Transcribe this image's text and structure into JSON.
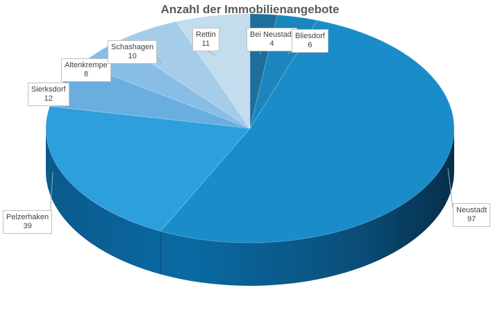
{
  "chart_data": {
    "type": "pie",
    "title": "Anzahl der Immobilienangebote",
    "slices": [
      {
        "label": "Bei Neustadt",
        "value": 4,
        "color": "#1f6d9a"
      },
      {
        "label": "Bliesdorf",
        "value": 6,
        "color": "#1a86bd"
      },
      {
        "label": "Neustadt",
        "value": 97,
        "color": "#1a8cc9"
      },
      {
        "label": "Pelzerhaken",
        "value": 39,
        "color": "#2d9fdc"
      },
      {
        "label": "Sierksdorf",
        "value": 12,
        "color": "#6aaee0"
      },
      {
        "label": "Altenkrempe",
        "value": 8,
        "color": "#88bde6"
      },
      {
        "label": "Schashagen",
        "value": 10,
        "color": "#a5cdea"
      },
      {
        "label": "Rettin",
        "value": 11,
        "color": "#c3dcee"
      }
    ],
    "legend": "none",
    "style": "3d-pie"
  }
}
